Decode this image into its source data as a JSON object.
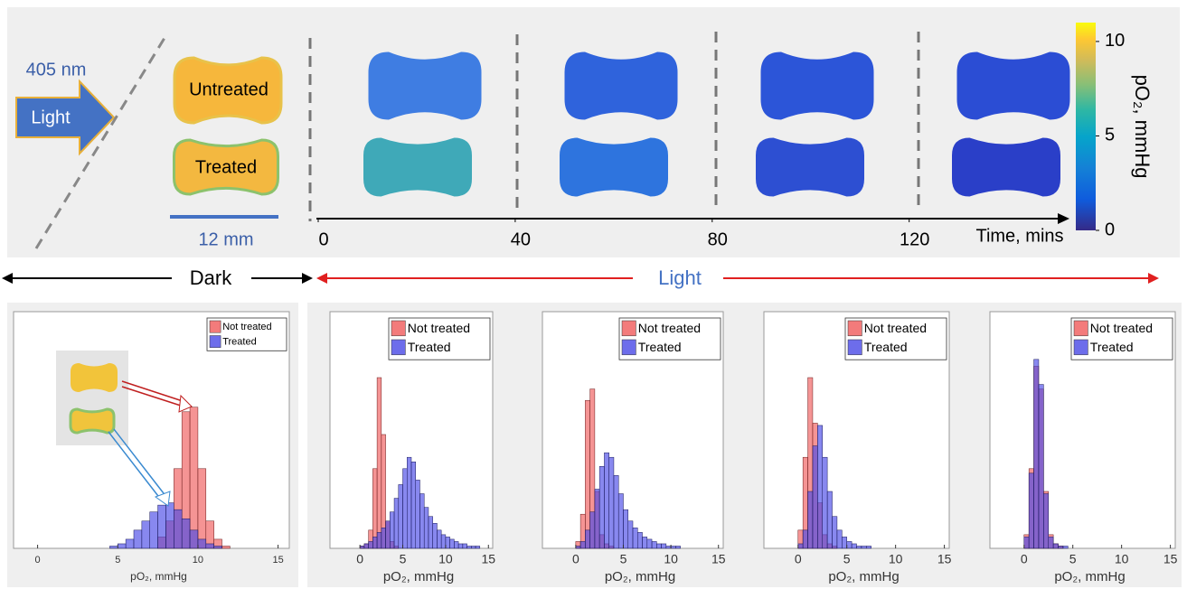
{
  "panel_a": {
    "wavelength": "405 nm",
    "light_label": "Light",
    "untreated_label": "Untreated",
    "treated_label": "Treated",
    "scale_label": "12 mm",
    "time_axis": {
      "label": "Time, mins",
      "xlim": [
        0,
        152
      ],
      "xticks": [
        0,
        40,
        80,
        120
      ]
    },
    "colorbar": {
      "label": "pO₂, mmHg",
      "ylim": [
        0,
        11
      ],
      "yticks": [
        0,
        5,
        10
      ]
    }
  },
  "phases": {
    "dark": "Dark",
    "light": "Light"
  },
  "chart_data": [
    {
      "type": "histogram",
      "xlabel": "pO₂, mmHg",
      "xlim": [
        -1.5,
        15.7
      ],
      "xticks": [
        0,
        5,
        10,
        15
      ],
      "ylim": [
        0,
        100
      ],
      "bins": [
        -1,
        -0.5,
        0,
        0.5,
        1,
        1.5,
        2,
        2.5,
        3,
        3.5,
        4,
        4.5,
        5,
        5.5,
        6,
        6.5,
        7,
        7.5,
        8,
        8.5,
        9,
        9.5,
        10,
        10.5,
        11,
        11.5,
        12,
        12.5,
        13,
        13.5,
        14,
        14.5,
        15
      ],
      "series": [
        {
          "name": "Not treated",
          "color": "#f05a5a",
          "values": [
            0,
            0,
            0,
            0,
            0,
            0,
            0,
            0,
            0,
            0,
            0,
            0,
            0,
            0,
            0,
            0,
            0,
            5,
            12,
            35,
            60,
            62,
            35,
            12,
            4,
            1,
            0,
            0,
            0,
            0,
            0,
            0
          ]
        },
        {
          "name": "Treated",
          "color": "#4848e6",
          "values": [
            0,
            0,
            0,
            0,
            0,
            0,
            0,
            0,
            0,
            0,
            0,
            1,
            2,
            4,
            8,
            12,
            16,
            19,
            20,
            17,
            13,
            8,
            4,
            2,
            1,
            0,
            0,
            0,
            0,
            0,
            0,
            0
          ]
        }
      ]
    },
    {
      "type": "histogram",
      "xlabel": "pO₂, mmHg",
      "xlim": [
        -3.5,
        15.5
      ],
      "xticks": [
        0,
        5,
        10,
        15
      ],
      "ylim": [
        0,
        100
      ],
      "bins": [
        -1,
        -0.5,
        0,
        0.5,
        1,
        1.5,
        2,
        2.5,
        3,
        3.5,
        4,
        4.5,
        5,
        5.5,
        6,
        6.5,
        7,
        7.5,
        8,
        8.5,
        9,
        9.5,
        10,
        10.5,
        11,
        11.5,
        12,
        12.5,
        13,
        13.5,
        14,
        14.5,
        15
      ],
      "series": [
        {
          "name": "Not treated",
          "color": "#f05a5a",
          "values": [
            0,
            0,
            1,
            2,
            8,
            35,
            75,
            50,
            12,
            3,
            1,
            0,
            0,
            0,
            0,
            0,
            0,
            0,
            0,
            0,
            0,
            0,
            0,
            0,
            0,
            0,
            0,
            0,
            0,
            0,
            0,
            0
          ]
        },
        {
          "name": "Treated",
          "color": "#4848e6",
          "values": [
            0,
            0,
            1,
            2,
            3,
            5,
            7,
            9,
            12,
            16,
            22,
            28,
            35,
            40,
            38,
            30,
            24,
            18,
            14,
            11,
            8,
            6,
            5,
            4,
            3,
            2,
            2,
            1,
            1,
            1,
            0,
            0
          ]
        }
      ]
    },
    {
      "type": "histogram",
      "xlabel": "pO₂, mmHg",
      "xlim": [
        -3.5,
        15.5
      ],
      "xticks": [
        0,
        5,
        10,
        15
      ],
      "ylim": [
        0,
        100
      ],
      "bins": [
        -1,
        -0.5,
        0,
        0.5,
        1,
        1.5,
        2,
        2.5,
        3,
        3.5,
        4,
        4.5,
        5,
        5.5,
        6,
        6.5,
        7,
        7.5,
        8,
        8.5,
        9,
        9.5,
        10,
        10.5,
        11,
        11.5,
        12,
        12.5,
        13,
        13.5,
        14,
        14.5,
        15
      ],
      "series": [
        {
          "name": "Not treated",
          "color": "#f05a5a",
          "values": [
            0,
            0,
            3,
            15,
            65,
            70,
            25,
            6,
            2,
            1,
            0,
            0,
            0,
            0,
            0,
            0,
            0,
            0,
            0,
            0,
            0,
            0,
            0,
            0,
            0,
            0,
            0,
            0,
            0,
            0,
            0,
            0
          ]
        },
        {
          "name": "Treated",
          "color": "#4848e6",
          "values": [
            0,
            0,
            1,
            3,
            8,
            16,
            26,
            36,
            42,
            40,
            32,
            24,
            17,
            12,
            9,
            7,
            5,
            4,
            3,
            2,
            2,
            1,
            1,
            1,
            0,
            0,
            0,
            0,
            0,
            0,
            0,
            0
          ]
        }
      ]
    },
    {
      "type": "histogram",
      "xlabel": "pO₂, mmHg",
      "xlim": [
        -3.5,
        15.5
      ],
      "xticks": [
        0,
        5,
        10,
        15
      ],
      "ylim": [
        0,
        100
      ],
      "bins": [
        -1,
        -0.5,
        0,
        0.5,
        1,
        1.5,
        2,
        2.5,
        3,
        3.5,
        4,
        4.5,
        5,
        5.5,
        6,
        6.5,
        7,
        7.5,
        8,
        8.5,
        9,
        9.5,
        10,
        10.5,
        11,
        11.5,
        12,
        12.5,
        13,
        13.5,
        14,
        14.5,
        15
      ],
      "series": [
        {
          "name": "Not treated",
          "color": "#f05a5a",
          "values": [
            0,
            0,
            8,
            40,
            75,
            55,
            20,
            6,
            2,
            1,
            0,
            0,
            0,
            0,
            0,
            0,
            0,
            0,
            0,
            0,
            0,
            0,
            0,
            0,
            0,
            0,
            0,
            0,
            0,
            0,
            0,
            0
          ]
        },
        {
          "name": "Treated",
          "color": "#4848e6",
          "values": [
            0,
            0,
            2,
            8,
            25,
            45,
            54,
            40,
            25,
            14,
            8,
            5,
            3,
            2,
            1,
            1,
            1,
            0,
            0,
            0,
            0,
            0,
            0,
            0,
            0,
            0,
            0,
            0,
            0,
            0,
            0,
            0
          ]
        }
      ]
    },
    {
      "type": "histogram",
      "xlabel": "pO₂, mmHg",
      "xlim": [
        -3.5,
        15.5
      ],
      "xticks": [
        0,
        5,
        10,
        15
      ],
      "ylim": [
        0,
        100
      ],
      "bins": [
        -1,
        -0.5,
        0,
        0.5,
        1,
        1.5,
        2,
        2.5,
        3,
        3.5,
        4,
        4.5,
        5,
        5.5,
        6,
        6.5,
        7,
        7.5,
        8,
        8.5,
        9,
        9.5,
        10,
        10.5,
        11,
        11.5,
        12,
        12.5,
        13,
        13.5,
        14,
        14.5,
        15
      ],
      "series": [
        {
          "name": "Not treated",
          "color": "#f05a5a",
          "values": [
            0,
            0,
            6,
            35,
            80,
            70,
            25,
            6,
            2,
            1,
            0,
            0,
            0,
            0,
            0,
            0,
            0,
            0,
            0,
            0,
            0,
            0,
            0,
            0,
            0,
            0,
            0,
            0,
            0,
            0,
            0,
            0
          ]
        },
        {
          "name": "Treated",
          "color": "#4848e6",
          "values": [
            0,
            0,
            5,
            33,
            83,
            72,
            24,
            5,
            2,
            1,
            1,
            0,
            0,
            0,
            0,
            0,
            0,
            0,
            0,
            0,
            0,
            0,
            0,
            0,
            0,
            0,
            0,
            0,
            0,
            0,
            0,
            0
          ]
        }
      ]
    }
  ]
}
